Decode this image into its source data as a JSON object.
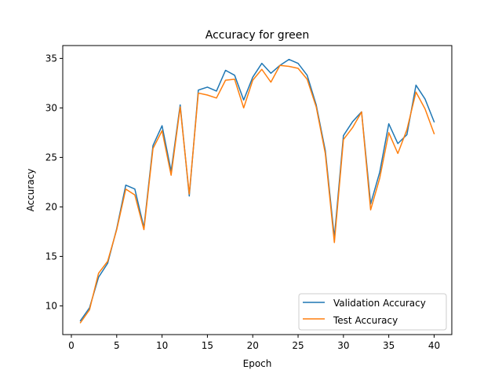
{
  "chart_data": {
    "type": "line",
    "title": "Accuracy for green",
    "xlabel": "Epoch",
    "ylabel": "Accuracy",
    "xlim": [
      -0.95,
      41.95
    ],
    "ylim": [
      7.1,
      36.3
    ],
    "xticks": [
      0,
      5,
      10,
      15,
      20,
      25,
      30,
      35,
      40
    ],
    "yticks": [
      10,
      15,
      20,
      25,
      30,
      35
    ],
    "grid": false,
    "legend_position": "lower right",
    "x": [
      1,
      2,
      3,
      4,
      5,
      6,
      7,
      8,
      9,
      10,
      11,
      12,
      13,
      14,
      15,
      16,
      17,
      18,
      19,
      20,
      21,
      22,
      23,
      24,
      25,
      26,
      27,
      28,
      29,
      30,
      31,
      32,
      33,
      34,
      35,
      36,
      37,
      38,
      39,
      40
    ],
    "series": [
      {
        "name": "Validation Accuracy",
        "color": "#1f77b4",
        "values": [
          8.5,
          9.8,
          12.9,
          14.3,
          17.8,
          22.2,
          21.8,
          17.9,
          26.2,
          28.2,
          23.6,
          30.3,
          21.1,
          31.8,
          32.1,
          31.7,
          33.8,
          33.3,
          30.8,
          33.1,
          34.5,
          33.5,
          34.3,
          34.9,
          34.5,
          33.3,
          30.3,
          25.7,
          16.9,
          27.2,
          28.6,
          29.6,
          20.3,
          23.5,
          28.4,
          26.4,
          27.3,
          32.3,
          30.9,
          28.6
        ]
      },
      {
        "name": "Test Accuracy",
        "color": "#ff7f0e",
        "values": [
          8.3,
          9.6,
          13.3,
          14.5,
          17.7,
          21.8,
          21.2,
          17.7,
          25.9,
          27.7,
          23.2,
          30.1,
          21.3,
          31.5,
          31.3,
          31.0,
          32.8,
          32.9,
          30.0,
          32.8,
          33.9,
          32.6,
          34.3,
          34.2,
          34.0,
          32.9,
          30.1,
          25.4,
          16.4,
          26.8,
          28.0,
          29.6,
          19.7,
          22.9,
          27.5,
          25.4,
          27.8,
          31.6,
          29.9,
          27.4
        ]
      }
    ]
  }
}
